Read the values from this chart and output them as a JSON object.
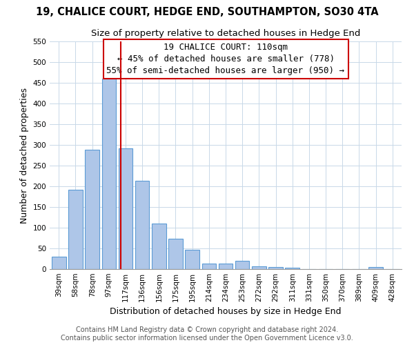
{
  "title": "19, CHALICE COURT, HEDGE END, SOUTHAMPTON, SO30 4TA",
  "subtitle": "Size of property relative to detached houses in Hedge End",
  "xlabel": "Distribution of detached houses by size in Hedge End",
  "ylabel": "Number of detached properties",
  "bar_labels": [
    "39sqm",
    "58sqm",
    "78sqm",
    "97sqm",
    "117sqm",
    "136sqm",
    "156sqm",
    "175sqm",
    "195sqm",
    "214sqm",
    "234sqm",
    "253sqm",
    "272sqm",
    "292sqm",
    "311sqm",
    "331sqm",
    "350sqm",
    "370sqm",
    "389sqm",
    "409sqm",
    "428sqm"
  ],
  "bar_values": [
    30,
    192,
    288,
    460,
    292,
    213,
    110,
    73,
    47,
    13,
    13,
    20,
    7,
    5,
    4,
    0,
    0,
    0,
    0,
    5,
    0
  ],
  "bar_color": "#aec6e8",
  "bar_edge_color": "#5b9bd5",
  "ylim": [
    0,
    550
  ],
  "yticks": [
    0,
    50,
    100,
    150,
    200,
    250,
    300,
    350,
    400,
    450,
    500,
    550
  ],
  "vline_x": 3.72,
  "vline_color": "#cc0000",
  "annotation_title": "19 CHALICE COURT: 110sqm",
  "annotation_line1": "← 45% of detached houses are smaller (778)",
  "annotation_line2": "55% of semi-detached houses are larger (950) →",
  "annotation_box_color": "#ffffff",
  "annotation_box_edge": "#cc0000",
  "footer1": "Contains HM Land Registry data © Crown copyright and database right 2024.",
  "footer2": "Contains public sector information licensed under the Open Government Licence v3.0.",
  "bg_color": "#ffffff",
  "grid_color": "#c8d8e8",
  "title_fontsize": 10.5,
  "subtitle_fontsize": 9.5,
  "axis_label_fontsize": 9,
  "tick_fontsize": 7.5,
  "annotation_fontsize": 9,
  "footer_fontsize": 7
}
